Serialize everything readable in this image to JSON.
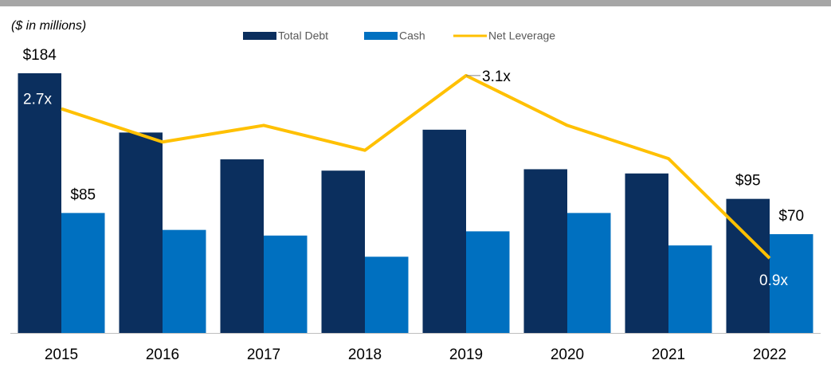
{
  "chart_data": {
    "type": "bar_line",
    "subtitle": "($ in millions)",
    "categories": [
      "2015",
      "2016",
      "2017",
      "2018",
      "2019",
      "2020",
      "2021",
      "2022"
    ],
    "ylim": [
      0,
      200
    ],
    "y2lim": [
      0,
      3.4
    ],
    "series": [
      {
        "name": "Total Debt",
        "color": "#0b2f5e",
        "type": "bar",
        "values": [
          184,
          142,
          123,
          115,
          144,
          116,
          113,
          95
        ],
        "value_labels": [
          "$184",
          null,
          null,
          null,
          null,
          null,
          null,
          "$95"
        ]
      },
      {
        "name": "Cash",
        "color": "#0070c0",
        "type": "bar",
        "values": [
          85,
          73,
          69,
          54,
          72,
          85,
          62,
          70
        ],
        "value_labels": [
          "$85",
          null,
          null,
          null,
          null,
          null,
          null,
          "$70"
        ]
      },
      {
        "name": "Net Leverage",
        "color": "#ffc000",
        "type": "line",
        "axis": "y2",
        "values": [
          2.7,
          2.3,
          2.5,
          2.2,
          3.1,
          2.5,
          2.1,
          0.9
        ],
        "value_labels": [
          "2.7x",
          null,
          null,
          null,
          "3.1x",
          null,
          null,
          "0.9x"
        ]
      }
    ]
  }
}
